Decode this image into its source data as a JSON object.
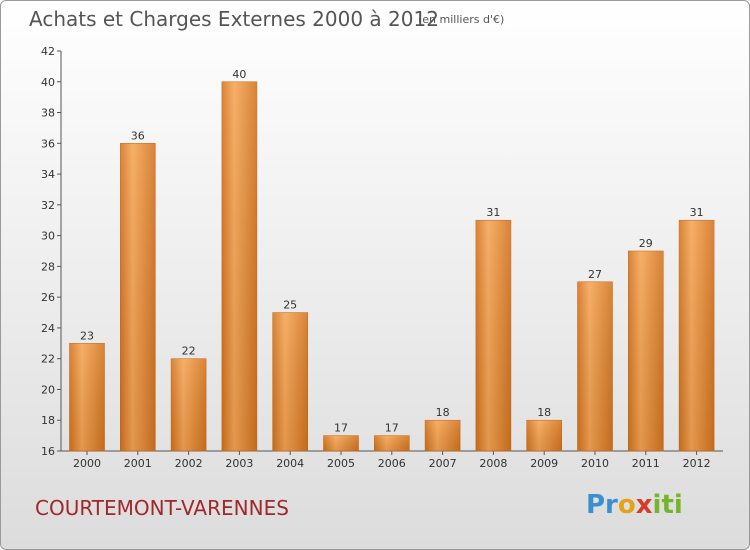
{
  "header": {
    "title": "Achats et Charges Externes 2000 à 2012",
    "subtitle": "(en milliers d'€)"
  },
  "footer": {
    "commune": "COURTEMONT-VARENNES",
    "logo": "Proxiti"
  },
  "colors": {
    "bar_light": "#f6a554",
    "bar_dark": "#d3741f",
    "axis": "#555555",
    "commune_text": "#a0282b"
  },
  "chart_data": {
    "type": "bar",
    "categories": [
      "2000",
      "2001",
      "2002",
      "2003",
      "2004",
      "2005",
      "2006",
      "2007",
      "2008",
      "2009",
      "2010",
      "2011",
      "2012"
    ],
    "values": [
      23,
      36,
      22,
      40,
      25,
      17,
      17,
      18,
      31,
      18,
      27,
      29,
      31
    ],
    "ylim": [
      16,
      42
    ],
    "yticks": [
      16,
      18,
      20,
      22,
      24,
      26,
      28,
      30,
      32,
      34,
      36,
      38,
      40,
      42
    ],
    "grid": false,
    "legend": "none"
  }
}
